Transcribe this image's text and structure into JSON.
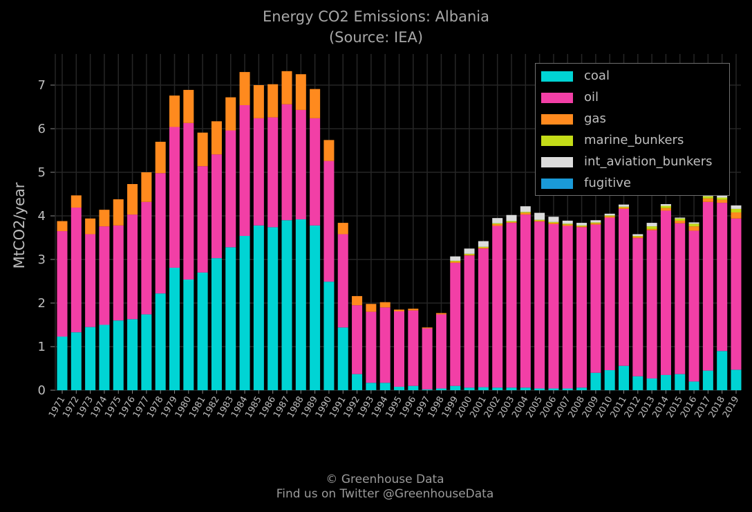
{
  "title": "Energy CO2 Emissions: Albania",
  "subtitle": "(Source: IEA)",
  "credit_line1": "© Greenhouse Data",
  "credit_line2": "Find us on Twitter @GreenhouseData",
  "colors": {
    "background": "#000000",
    "grid": "#2a2a2a",
    "text": "#a8a8a8"
  },
  "chart_data": {
    "type": "bar",
    "stacked": true,
    "title": "Energy CO2 Emissions: Albania",
    "subtitle": "(Source: IEA)",
    "xlabel": "",
    "ylabel": "MtCO2/year",
    "ylim": [
      0,
      7.7
    ],
    "yticks": [
      0,
      1,
      2,
      3,
      4,
      5,
      6,
      7
    ],
    "grid": true,
    "legend_position": "top-right",
    "categories": [
      "1971",
      "1972",
      "1973",
      "1974",
      "1975",
      "1976",
      "1977",
      "1978",
      "1979",
      "1980",
      "1981",
      "1982",
      "1983",
      "1984",
      "1985",
      "1986",
      "1987",
      "1988",
      "1989",
      "1990",
      "1991",
      "1992",
      "1993",
      "1994",
      "1995",
      "1996",
      "1997",
      "1998",
      "1999",
      "2000",
      "2001",
      "2002",
      "2003",
      "2004",
      "2005",
      "2006",
      "2007",
      "2008",
      "2009",
      "2010",
      "2011",
      "2012",
      "2013",
      "2014",
      "2015",
      "2016",
      "2017",
      "2018",
      "2019"
    ],
    "series": [
      {
        "name": "coal",
        "color": "#00d4d4",
        "values": [
          1.23,
          1.33,
          1.45,
          1.5,
          1.6,
          1.63,
          1.74,
          2.22,
          2.81,
          2.54,
          2.7,
          3.03,
          3.28,
          3.54,
          3.78,
          3.74,
          3.9,
          3.92,
          3.78,
          2.49,
          1.44,
          0.37,
          0.17,
          0.17,
          0.08,
          0.1,
          0.02,
          0.04,
          0.1,
          0.06,
          0.07,
          0.06,
          0.06,
          0.06,
          0.04,
          0.04,
          0.04,
          0.06,
          0.4,
          0.46,
          0.56,
          0.32,
          0.27,
          0.35,
          0.37,
          0.2,
          0.45,
          0.9,
          0.47
        ]
      },
      {
        "name": "oil",
        "color": "#f23fa6",
        "values": [
          2.42,
          2.86,
          2.13,
          2.26,
          2.18,
          2.4,
          2.58,
          2.76,
          3.23,
          3.59,
          2.44,
          2.38,
          2.68,
          3.0,
          2.46,
          2.52,
          2.66,
          2.51,
          2.46,
          2.77,
          2.14,
          1.58,
          1.63,
          1.73,
          1.73,
          1.73,
          1.4,
          1.7,
          2.82,
          3.03,
          3.18,
          3.71,
          3.78,
          3.97,
          3.83,
          3.77,
          3.73,
          3.68,
          3.4,
          3.5,
          3.6,
          3.17,
          3.4,
          3.77,
          3.46,
          3.46,
          3.87,
          3.4,
          3.47
        ]
      },
      {
        "name": "gas",
        "color": "#ff8a1e",
        "values": [
          0.23,
          0.28,
          0.36,
          0.38,
          0.6,
          0.7,
          0.68,
          0.72,
          0.72,
          0.76,
          0.77,
          0.76,
          0.76,
          0.76,
          0.76,
          0.76,
          0.76,
          0.82,
          0.67,
          0.48,
          0.26,
          0.21,
          0.18,
          0.12,
          0.04,
          0.04,
          0.02,
          0.03,
          0.03,
          0.02,
          0.02,
          0.04,
          0.02,
          0.04,
          0.02,
          0.03,
          0.03,
          0.02,
          0.03,
          0.03,
          0.03,
          0.03,
          0.03,
          0.06,
          0.06,
          0.1,
          0.08,
          0.07,
          0.14
        ]
      },
      {
        "name": "marine_bunkers",
        "color": "#c4dc18",
        "values": [
          0,
          0,
          0,
          0,
          0,
          0,
          0,
          0,
          0,
          0,
          0,
          0,
          0,
          0,
          0,
          0,
          0,
          0,
          0,
          0,
          0,
          0,
          0,
          0,
          0,
          0,
          0,
          0,
          0.02,
          0.02,
          0.02,
          0.02,
          0.02,
          0.02,
          0.02,
          0.02,
          0.02,
          0.02,
          0.02,
          0.02,
          0.02,
          0.02,
          0.06,
          0.05,
          0.05,
          0.06,
          0.05,
          0.05,
          0.08
        ]
      },
      {
        "name": "int_aviation_bunkers",
        "color": "#dcdcdc",
        "values": [
          0,
          0,
          0,
          0,
          0,
          0,
          0,
          0,
          0,
          0,
          0,
          0,
          0,
          0,
          0,
          0,
          0,
          0,
          0,
          0,
          0,
          0,
          0,
          0,
          0,
          0,
          0,
          0,
          0.1,
          0.12,
          0.13,
          0.12,
          0.14,
          0.13,
          0.16,
          0.12,
          0.07,
          0.06,
          0.05,
          0.04,
          0.05,
          0.04,
          0.08,
          0.04,
          0.02,
          0.03,
          0.02,
          0.04,
          0.08
        ]
      },
      {
        "name": "fugitive",
        "color": "#1a9ad8",
        "values": [
          0,
          0,
          0,
          0,
          0,
          0,
          0,
          0,
          0,
          0,
          0,
          0,
          0,
          0,
          0,
          0,
          0,
          0,
          0,
          0,
          0,
          0,
          0,
          0,
          0,
          0,
          0,
          0,
          0,
          0,
          0,
          0,
          0,
          0,
          0,
          0,
          0,
          0,
          0,
          0,
          0,
          0,
          0,
          0,
          0,
          0,
          0,
          0,
          0
        ]
      }
    ],
    "overlay_2017": [
      0.05,
      0.02,
      0.03
    ]
  }
}
